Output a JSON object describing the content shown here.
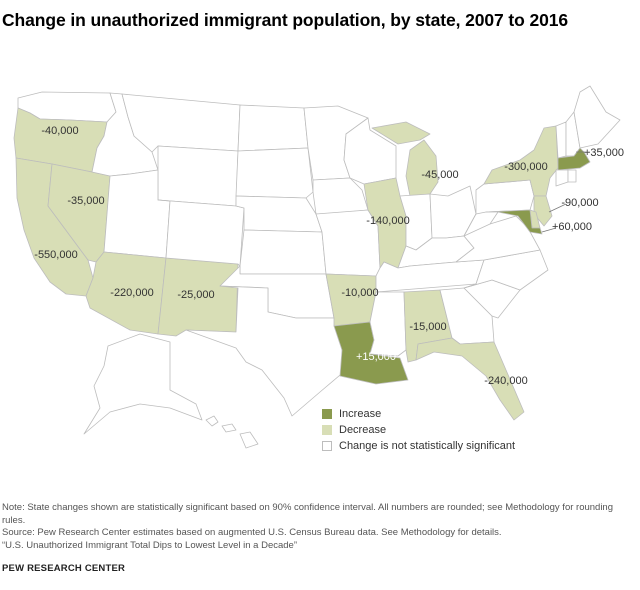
{
  "title": "Change in unauthorized immigrant population, by state, 2007 to 2016",
  "colors": {
    "increase": "#8a9a4e",
    "decrease": "#d8deb6",
    "not_significant": "#ffffff",
    "border": "#bdbdbd"
  },
  "states": {
    "WA": {
      "status": "not_significant"
    },
    "OR": {
      "status": "decrease",
      "value": "-40,000"
    },
    "CA": {
      "status": "decrease",
      "value": "-550,000"
    },
    "NV": {
      "status": "decrease",
      "value": "-35,000"
    },
    "ID": {
      "status": "not_significant"
    },
    "MT": {
      "status": "not_significant"
    },
    "WY": {
      "status": "not_significant"
    },
    "UT": {
      "status": "not_significant"
    },
    "AZ": {
      "status": "decrease",
      "value": "-220,000"
    },
    "NM": {
      "status": "decrease",
      "value": "-25,000"
    },
    "CO": {
      "status": "not_significant"
    },
    "ND": {
      "status": "not_significant"
    },
    "SD": {
      "status": "not_significant"
    },
    "NE": {
      "status": "not_significant"
    },
    "KS": {
      "status": "not_significant"
    },
    "OK": {
      "status": "not_significant"
    },
    "TX": {
      "status": "not_significant"
    },
    "MN": {
      "status": "not_significant"
    },
    "IA": {
      "status": "not_significant"
    },
    "MO": {
      "status": "not_significant"
    },
    "AR": {
      "status": "decrease",
      "value": "-10,000"
    },
    "LA": {
      "status": "increase",
      "value": "+15,000"
    },
    "WI": {
      "status": "not_significant"
    },
    "IL": {
      "status": "decrease",
      "value": "-140,000"
    },
    "MI": {
      "status": "decrease",
      "value": "-45,000"
    },
    "IN": {
      "status": "not_significant"
    },
    "OH": {
      "status": "not_significant"
    },
    "KY": {
      "status": "not_significant"
    },
    "TN": {
      "status": "not_significant"
    },
    "MS": {
      "status": "not_significant"
    },
    "AL": {
      "status": "decrease",
      "value": "-15,000"
    },
    "GA": {
      "status": "not_significant"
    },
    "FL": {
      "status": "decrease",
      "value": "-240,000"
    },
    "SC": {
      "status": "not_significant"
    },
    "NC": {
      "status": "not_significant"
    },
    "VA": {
      "status": "not_significant"
    },
    "WV": {
      "status": "not_significant"
    },
    "PA": {
      "status": "not_significant"
    },
    "NY": {
      "status": "decrease",
      "value": "-300,000"
    },
    "NJ": {
      "status": "decrease",
      "value": "-90,000"
    },
    "DE": {
      "status": "decrease"
    },
    "MD": {
      "status": "increase",
      "value": "+60,000"
    },
    "VT": {
      "status": "not_significant"
    },
    "NH": {
      "status": "not_significant"
    },
    "ME": {
      "status": "not_significant"
    },
    "MA": {
      "status": "increase",
      "value": "+35,000"
    },
    "CT": {
      "status": "not_significant"
    },
    "RI": {
      "status": "not_significant"
    },
    "AK": {
      "status": "not_significant"
    },
    "HI": {
      "status": "not_significant"
    }
  },
  "legend": {
    "increase": "Increase",
    "decrease": "Decrease",
    "not_significant": "Change is not statistically significant"
  },
  "notes": {
    "note": "Note: State changes shown are statistically significant based on 90% confidence interval. All numbers are rounded; see Methodology for rounding rules.",
    "source": "Source: Pew Research Center estimates based on augmented U.S. Census Bureau data. See Methodology for details.",
    "report": "“U.S. Unauthorized Immigrant Total Dips to Lowest Level in a Decade”"
  },
  "footer": "PEW RESEARCH CENTER"
}
